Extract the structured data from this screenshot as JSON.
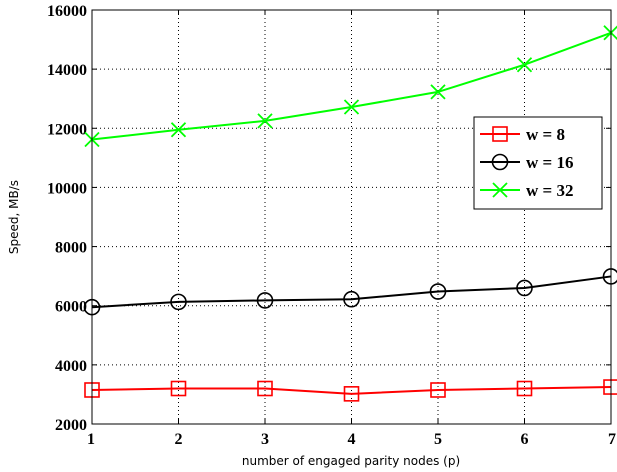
{
  "chart_data": {
    "type": "line",
    "title": "",
    "xlabel": "number of engaged parity nodes (p)",
    "ylabel": "Speed, MB/s",
    "x": [
      1,
      2,
      3,
      4,
      5,
      6,
      7
    ],
    "xlim": [
      1,
      7
    ],
    "ylim": [
      2000,
      16000
    ],
    "xticks": [
      "1",
      "2",
      "3",
      "4",
      "5",
      "6",
      "7"
    ],
    "yticks": [
      "2000",
      "4000",
      "6000",
      "8000",
      "10000",
      "12000",
      "14000",
      "16000"
    ],
    "grid": true,
    "legend_position": "center-right",
    "series": [
      {
        "name": "w = 8",
        "color": "#ff0000",
        "marker": "square",
        "values": [
          3150,
          3200,
          3200,
          3020,
          3150,
          3200,
          3250
        ]
      },
      {
        "name": "w = 16",
        "color": "#000000",
        "marker": "circle",
        "values": [
          5950,
          6130,
          6180,
          6220,
          6480,
          6600,
          6990
        ]
      },
      {
        "name": "w = 32",
        "color": "#00ff00",
        "marker": "x",
        "values": [
          11620,
          11950,
          12250,
          12720,
          13230,
          14150,
          15230
        ]
      }
    ]
  }
}
